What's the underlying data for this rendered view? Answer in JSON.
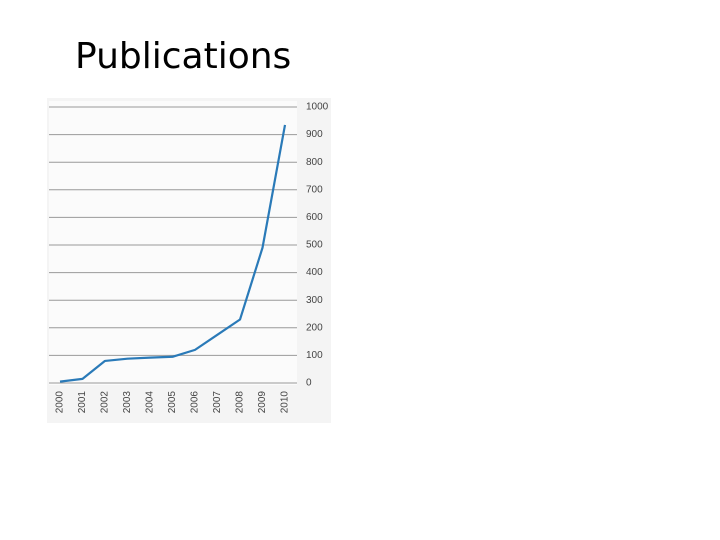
{
  "chart_data": {
    "type": "line",
    "title": "Publications",
    "categories": [
      "2000",
      "2001",
      "2002",
      "2003",
      "2004",
      "2005",
      "2006",
      "2007",
      "2008",
      "2009",
      "2010"
    ],
    "values": [
      5,
      15,
      80,
      88,
      92,
      95,
      120,
      175,
      230,
      490,
      935
    ],
    "color": "#2a7ab8",
    "ylim": [
      0,
      1000
    ],
    "yticks": [
      0,
      100,
      200,
      300,
      400,
      500,
      600,
      700,
      800,
      900,
      1000
    ],
    "grid": true
  }
}
